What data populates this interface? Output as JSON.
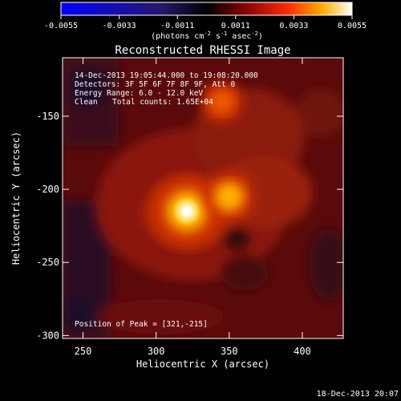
{
  "colorbar": {
    "ticks": [
      "-0.0055",
      "-0.0033",
      "-0.0011",
      "0.0011",
      "0.0033",
      "0.0055"
    ],
    "label_main": "(photons cm",
    "label_exp1": "-2",
    "label_mid1": " s",
    "label_exp2": "-1",
    "label_mid2": " asec",
    "label_exp3": "-2",
    "label_end": ")"
  },
  "chart_data": {
    "type": "heatmap",
    "title": "Reconstructed RHESSI Image",
    "xlabel": "Heliocentric X (arcsec)",
    "ylabel": "Heliocentric Y (arcsec)",
    "xlim": [
      236,
      428
    ],
    "ylim": [
      -302,
      -110
    ],
    "x_ticks": [
      250,
      300,
      350,
      400
    ],
    "y_ticks": [
      -150,
      -200,
      -250,
      -300
    ],
    "colorbar_range": [
      -0.0055,
      0.0055
    ],
    "sources": [
      {
        "x": 321,
        "y": -215,
        "amp": 0.0055
      },
      {
        "x": 350,
        "y": -205,
        "amp": 0.0032
      },
      {
        "x": 345,
        "y": -140,
        "amp": 0.0022
      }
    ],
    "annotations": {
      "time": "14-Dec-2013 19:05:44.000 to 19:08:20.000",
      "detectors": "Detectors: 3F 5F 6F 7F 8F 9F, Att 0",
      "energy": "Energy Range: 6.0 - 12.0 keV",
      "method": "Clean",
      "counts": "Total counts: 1.65E+04",
      "peak": "Position of Peak = [321,-215]"
    }
  },
  "footer": {
    "timestamp": "18-Dec-2013 20:07"
  }
}
